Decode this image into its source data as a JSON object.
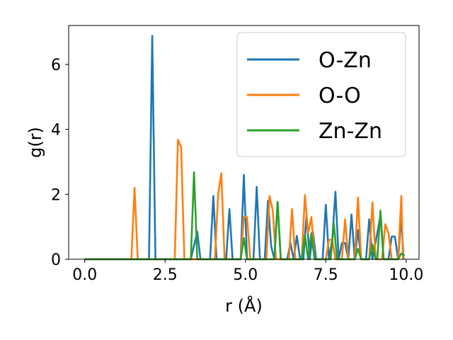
{
  "chart_data": {
    "type": "line",
    "title": "",
    "xlabel": "r (Å)",
    "ylabel": "g(r)",
    "xlim": [
      -0.5,
      10.4
    ],
    "ylim": [
      0,
      7.2
    ],
    "xticks": [
      0.0,
      2.5,
      5.0,
      7.5,
      10.0
    ],
    "xtick_labels": [
      "0.0",
      "2.5",
      "5.0",
      "7.5",
      "10.0"
    ],
    "yticks": [
      0,
      2,
      4,
      6
    ],
    "ytick_labels": [
      "0",
      "2",
      "4",
      "6"
    ],
    "grid": false,
    "legend": "upper-right",
    "series": [
      {
        "name": "O-Zn",
        "color": "#1f77b4",
        "points": [
          [
            0,
            0
          ],
          [
            2.0,
            0
          ],
          [
            2.1,
            6.88
          ],
          [
            2.2,
            0
          ],
          [
            3.3,
            0
          ],
          [
            3.5,
            0.85
          ],
          [
            3.6,
            0
          ],
          [
            3.9,
            0
          ],
          [
            4.0,
            1.95
          ],
          [
            4.1,
            0
          ],
          [
            4.4,
            0
          ],
          [
            4.5,
            1.55
          ],
          [
            4.6,
            0
          ],
          [
            4.85,
            0
          ],
          [
            4.95,
            2.6
          ],
          [
            5.05,
            0
          ],
          [
            5.25,
            0
          ],
          [
            5.35,
            2.23
          ],
          [
            5.45,
            0
          ],
          [
            5.6,
            0
          ],
          [
            5.7,
            1.8
          ],
          [
            5.8,
            0.4
          ],
          [
            5.9,
            0
          ],
          [
            6.0,
            1.75
          ],
          [
            6.1,
            0
          ],
          [
            6.3,
            0
          ],
          [
            6.4,
            0.5
          ],
          [
            6.5,
            0
          ],
          [
            6.6,
            0.72
          ],
          [
            6.7,
            0
          ],
          [
            6.8,
            0
          ],
          [
            6.9,
            1.35
          ],
          [
            7.0,
            0
          ],
          [
            7.1,
            0.85
          ],
          [
            7.2,
            0
          ],
          [
            7.4,
            0
          ],
          [
            7.5,
            1.68
          ],
          [
            7.6,
            0
          ],
          [
            7.7,
            0.6
          ],
          [
            7.8,
            2.08
          ],
          [
            7.9,
            0
          ],
          [
            8.0,
            0.5
          ],
          [
            8.1,
            0.5
          ],
          [
            8.2,
            0
          ],
          [
            8.3,
            1.38
          ],
          [
            8.4,
            0
          ],
          [
            8.5,
            0.9
          ],
          [
            8.6,
            0
          ],
          [
            8.75,
            0
          ],
          [
            8.85,
            1.23
          ],
          [
            8.95,
            0
          ],
          [
            9.1,
            0.8
          ],
          [
            9.2,
            1.35
          ],
          [
            9.3,
            0
          ],
          [
            9.45,
            0
          ],
          [
            9.55,
            0.7
          ],
          [
            9.65,
            0.7
          ],
          [
            9.75,
            0
          ],
          [
            9.85,
            1.32
          ],
          [
            9.92,
            0
          ]
        ]
      },
      {
        "name": "O-O",
        "color": "#ff7f0e",
        "points": [
          [
            0,
            0
          ],
          [
            1.45,
            0
          ],
          [
            1.55,
            2.2
          ],
          [
            1.65,
            0
          ],
          [
            2.8,
            0
          ],
          [
            2.9,
            3.68
          ],
          [
            3.0,
            3.45
          ],
          [
            3.1,
            0
          ],
          [
            4.05,
            0
          ],
          [
            4.15,
            2.0
          ],
          [
            4.25,
            2.65
          ],
          [
            4.35,
            0
          ],
          [
            4.85,
            0
          ],
          [
            4.95,
            1.3
          ],
          [
            5.05,
            1.3
          ],
          [
            5.15,
            0
          ],
          [
            5.65,
            0
          ],
          [
            5.75,
            1.95
          ],
          [
            5.85,
            1.5
          ],
          [
            5.95,
            0
          ],
          [
            6.35,
            0
          ],
          [
            6.45,
            1.55
          ],
          [
            6.55,
            0
          ],
          [
            6.75,
            0
          ],
          [
            6.85,
            1.98
          ],
          [
            6.95,
            0.8
          ],
          [
            7.05,
            1.3
          ],
          [
            7.15,
            0
          ],
          [
            7.5,
            0
          ],
          [
            7.6,
            0.6
          ],
          [
            7.7,
            0.6
          ],
          [
            7.8,
            0
          ],
          [
            8.0,
            0
          ],
          [
            8.1,
            1.23
          ],
          [
            8.2,
            0
          ],
          [
            8.4,
            0
          ],
          [
            8.5,
            1.9
          ],
          [
            8.6,
            0
          ],
          [
            8.85,
            0
          ],
          [
            8.95,
            1.75
          ],
          [
            9.05,
            0
          ],
          [
            9.25,
            0
          ],
          [
            9.35,
            1.08
          ],
          [
            9.45,
            0.8
          ],
          [
            9.55,
            0
          ],
          [
            9.75,
            0
          ],
          [
            9.85,
            1.95
          ],
          [
            9.9,
            0
          ]
        ]
      },
      {
        "name": "Zn-Zn",
        "color": "#2ca02c",
        "points": [
          [
            0,
            0
          ],
          [
            3.3,
            0
          ],
          [
            3.4,
            2.68
          ],
          [
            3.5,
            0
          ],
          [
            4.85,
            0
          ],
          [
            4.95,
            0.65
          ],
          [
            5.05,
            0
          ],
          [
            5.9,
            0
          ],
          [
            6.0,
            1.77
          ],
          [
            6.1,
            0
          ],
          [
            6.75,
            0
          ],
          [
            6.85,
            0.75
          ],
          [
            6.95,
            0
          ],
          [
            7.05,
            0.8
          ],
          [
            7.15,
            0
          ],
          [
            7.65,
            0
          ],
          [
            7.75,
            1.1
          ],
          [
            7.85,
            0
          ],
          [
            8.4,
            0
          ],
          [
            8.5,
            0.32
          ],
          [
            8.6,
            0
          ],
          [
            8.85,
            0
          ],
          [
            8.95,
            0.45
          ],
          [
            9.05,
            0
          ],
          [
            9.1,
            0
          ],
          [
            9.2,
            1.5
          ],
          [
            9.3,
            0
          ],
          [
            9.75,
            0
          ],
          [
            9.85,
            0.18
          ],
          [
            9.95,
            0.1
          ]
        ]
      }
    ]
  }
}
